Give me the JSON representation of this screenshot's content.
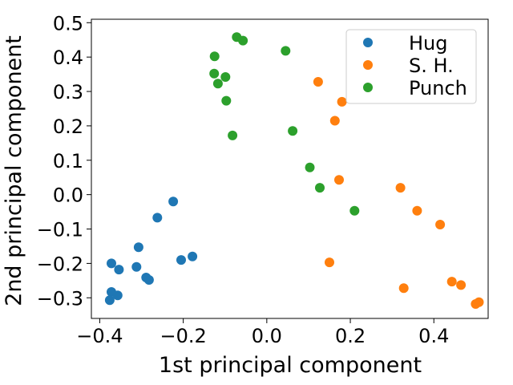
{
  "chart_data": {
    "type": "scatter",
    "xlabel": "1st principal component",
    "ylabel": "2nd principal component",
    "xlim": [
      -0.42,
      0.53
    ],
    "ylim": [
      -0.36,
      0.51
    ],
    "xticks": [
      -0.4,
      -0.2,
      0.0,
      0.2,
      0.4
    ],
    "xtick_labels": [
      "−0.4",
      "−0.2",
      "0.0",
      "0.2",
      "0.4"
    ],
    "yticks": [
      -0.3,
      -0.2,
      -0.1,
      0.0,
      0.1,
      0.2,
      0.3,
      0.4,
      0.5
    ],
    "ytick_labels": [
      "−0.3",
      "−0.2",
      "−0.1",
      "0.0",
      "0.1",
      "0.2",
      "0.3",
      "0.4",
      "0.5"
    ],
    "grid": false,
    "legend_position": "top-right",
    "series": [
      {
        "name": "Hug",
        "color": "#1f77b4",
        "points": [
          [
            -0.224,
            -0.02
          ],
          [
            -0.262,
            -0.067
          ],
          [
            -0.307,
            -0.153
          ],
          [
            -0.312,
            -0.21
          ],
          [
            -0.372,
            -0.2
          ],
          [
            -0.354,
            -0.218
          ],
          [
            -0.205,
            -0.19
          ],
          [
            -0.178,
            -0.18
          ],
          [
            -0.289,
            -0.241
          ],
          [
            -0.282,
            -0.248
          ],
          [
            -0.372,
            -0.283
          ],
          [
            -0.357,
            -0.293
          ],
          [
            -0.376,
            -0.307
          ]
        ]
      },
      {
        "name": "S. H.",
        "color": "#ff7f0e",
        "points": [
          [
            0.123,
            0.328
          ],
          [
            0.18,
            0.27
          ],
          [
            0.163,
            0.215
          ],
          [
            0.173,
            0.043
          ],
          [
            0.32,
            0.02
          ],
          [
            0.36,
            -0.047
          ],
          [
            0.415,
            -0.087
          ],
          [
            0.15,
            -0.197
          ],
          [
            0.328,
            -0.272
          ],
          [
            0.443,
            -0.253
          ],
          [
            0.465,
            -0.263
          ],
          [
            0.508,
            -0.313
          ],
          [
            0.5,
            -0.318
          ]
        ]
      },
      {
        "name": "Punch",
        "color": "#2ca02c",
        "points": [
          [
            -0.072,
            0.458
          ],
          [
            -0.057,
            0.448
          ],
          [
            0.045,
            0.418
          ],
          [
            -0.125,
            0.402
          ],
          [
            -0.126,
            0.352
          ],
          [
            -0.099,
            0.342
          ],
          [
            -0.117,
            0.323
          ],
          [
            -0.097,
            0.273
          ],
          [
            -0.082,
            0.172
          ],
          [
            0.062,
            0.185
          ],
          [
            0.103,
            0.079
          ],
          [
            0.127,
            0.02
          ],
          [
            0.21,
            -0.047
          ]
        ]
      }
    ]
  }
}
